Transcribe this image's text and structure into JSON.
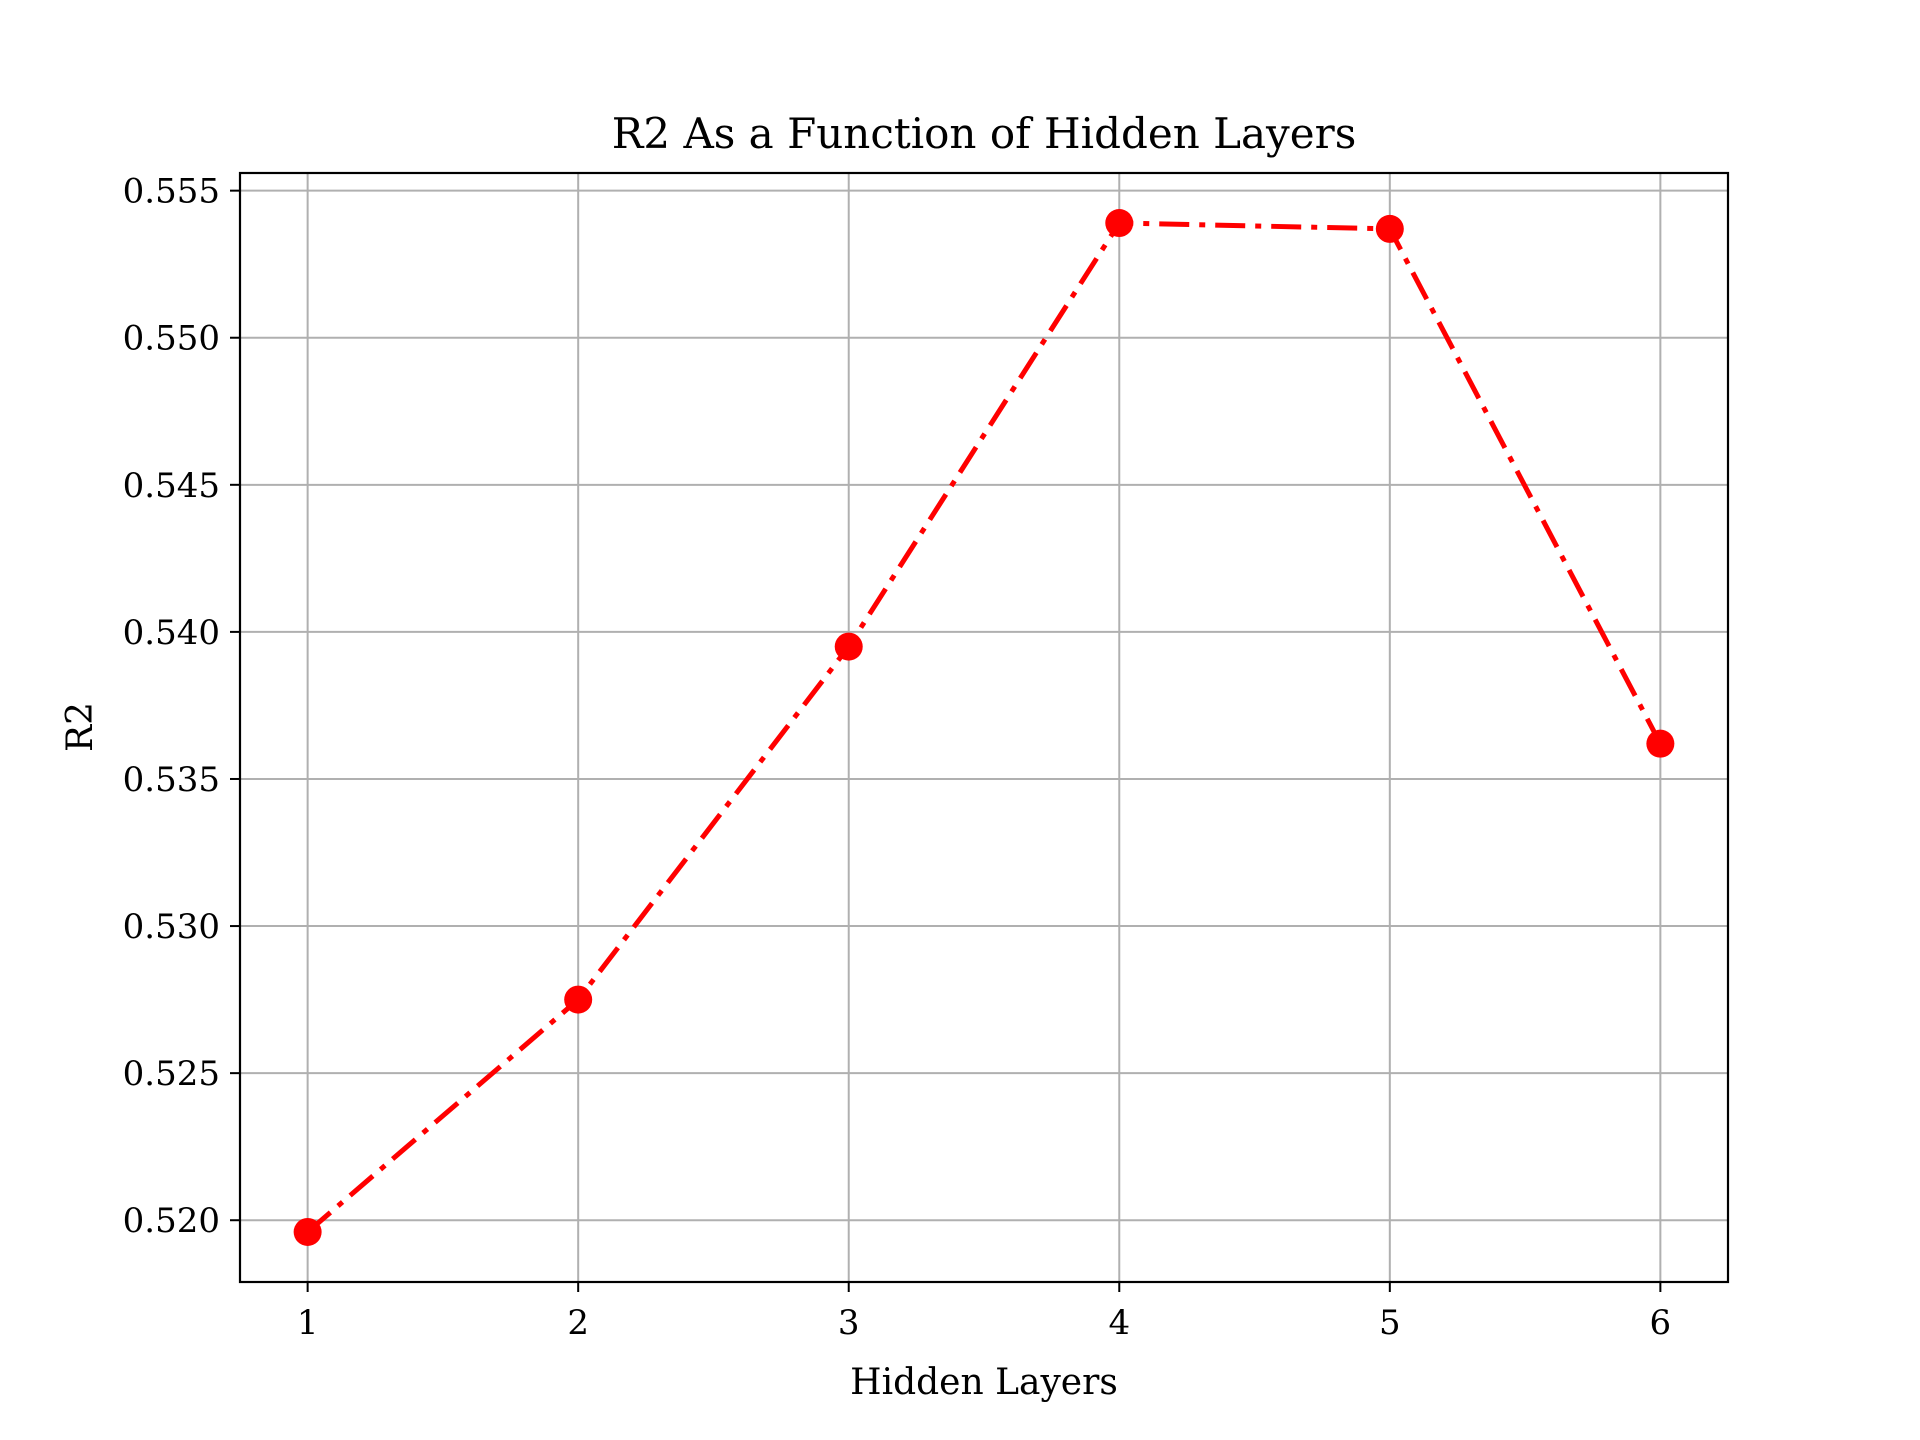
{
  "chart_data": {
    "type": "line",
    "title": "R2 As a Function of Hidden Layers",
    "xlabel": "Hidden Layers",
    "ylabel": "R2",
    "x": [
      1,
      2,
      3,
      4,
      5,
      6
    ],
    "series": [
      {
        "values": [
          0.5196,
          0.5275,
          0.5395,
          0.5539,
          0.5537,
          0.5362
        ],
        "color": "#ff0000",
        "line_style": "dashdot",
        "marker": "circle"
      }
    ],
    "xlim": [
      0.75,
      6.25
    ],
    "ylim": [
      0.5179,
      0.5556
    ],
    "xticks": [
      1,
      2,
      3,
      4,
      5,
      6
    ],
    "xtick_labels": [
      "1",
      "2",
      "3",
      "4",
      "5",
      "6"
    ],
    "yticks": [
      0.52,
      0.525,
      0.53,
      0.535,
      0.54,
      0.545,
      0.55,
      0.555
    ],
    "ytick_labels": [
      "0.520",
      "0.525",
      "0.530",
      "0.535",
      "0.540",
      "0.545",
      "0.550",
      "0.555"
    ],
    "grid": true,
    "legend": "none"
  }
}
